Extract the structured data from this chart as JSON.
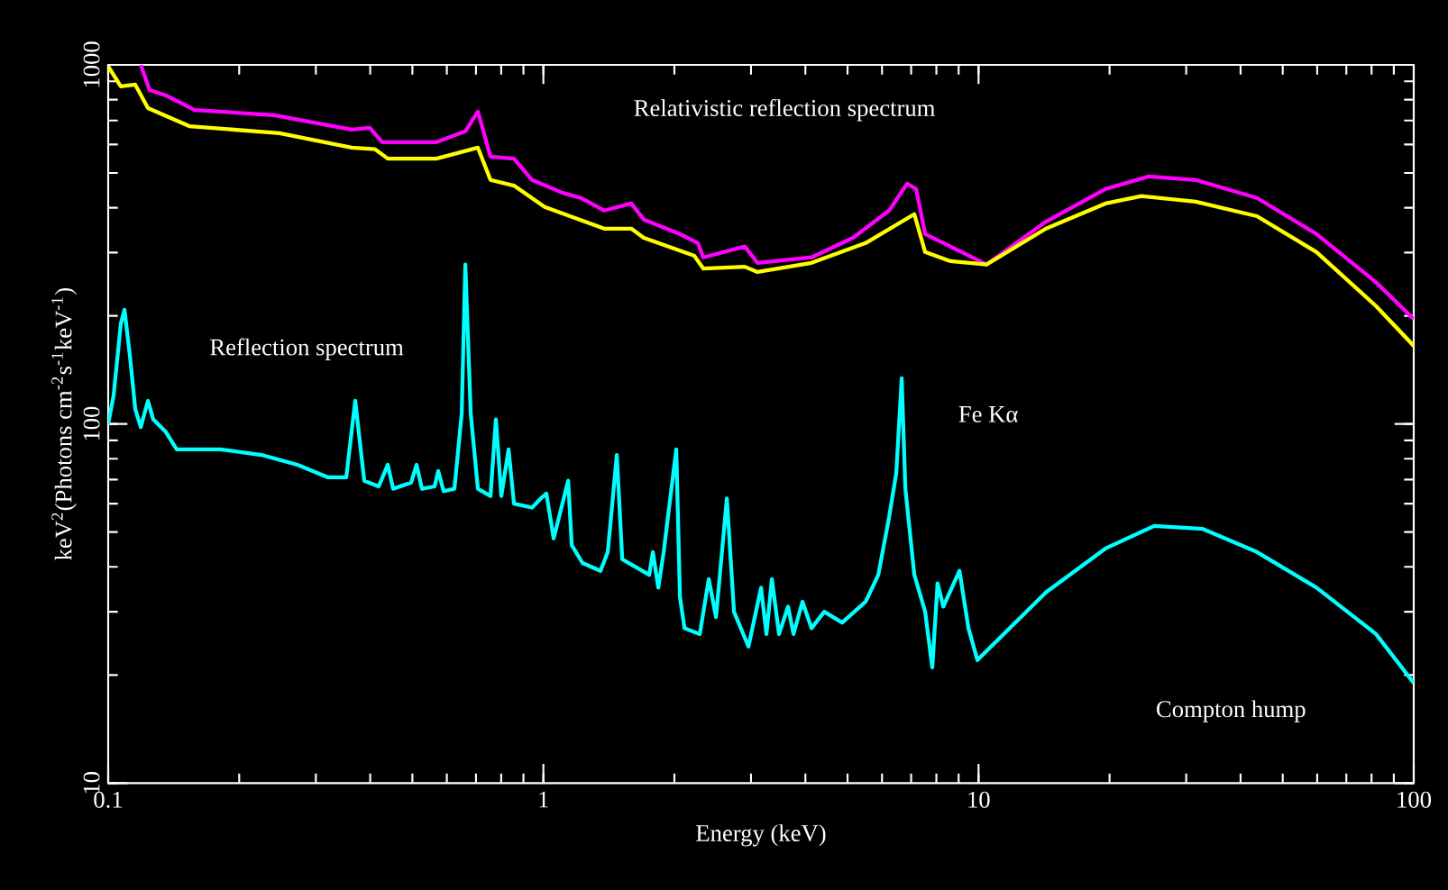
{
  "chart_data": {
    "type": "line",
    "xlabel": "Energy (keV)",
    "ylabel": "keV$^{2}$(Photons cm$^{-2}$s$^{-1}$keV$^{-1}$)",
    "log": "xy",
    "xlim": [
      0.1,
      100
    ],
    "ylim": [
      10,
      1000
    ],
    "xticks": [
      0.1,
      1,
      10,
      100
    ],
    "yticks": [
      10,
      100,
      1000
    ],
    "grid": false,
    "annotations": [
      "Relativistic reflection spectrum",
      "Reflection spectrum",
      {
        "text": "Fe Kα",
        "x": 6.66,
        "y": 134
      },
      "Compton hump"
    ],
    "series": [
      {
        "color": "#ff00ff",
        "x": [
          0.1188,
          0.1245,
          0.1357,
          0.158,
          0.2406,
          0.3626,
          0.399,
          0.4266,
          0.5679,
          0.6617,
          0.7073,
          0.756,
          0.856,
          0.942,
          1.108,
          1.219,
          1.379,
          1.592,
          1.701,
          2.06,
          2.265,
          2.33,
          2.903,
          3.104,
          4.132,
          5.146,
          6.23,
          6.855,
          7.19,
          7.54,
          8.62,
          10.43,
          14.29,
          19.57,
          24.61,
          31.55,
          43.63,
          59.8,
          81.9,
          100
        ],
        "values": [
          1000,
          851,
          822,
          749,
          724,
          660,
          668,
          609,
          609,
          653,
          741,
          555,
          548,
          478,
          440,
          426,
          393,
          411,
          371,
          338,
          319,
          291,
          312,
          281,
          291,
          330,
          393,
          467,
          451,
          338,
          312,
          278,
          366,
          451,
          489,
          478,
          426,
          338,
          248,
          196
        ]
      },
      {
        "color": "#ffff00",
        "x": [
          0.1,
          0.1069,
          0.1154,
          0.1234,
          0.1536,
          0.2476,
          0.3626,
          0.4106,
          0.439,
          0.5679,
          0.7073,
          0.756,
          0.856,
          1.007,
          1.379,
          1.592,
          1.701,
          2.223,
          2.33,
          2.903,
          3.104,
          4.132,
          5.503,
          7.12,
          7.54,
          8.62,
          10.43,
          14.29,
          19.57,
          23.7,
          31.55,
          43.63,
          59.8,
          81.9,
          100
        ],
        "values": [
          990,
          871,
          881,
          758,
          675,
          645,
          588,
          582,
          548,
          548,
          588,
          478,
          461,
          402,
          350,
          350,
          330,
          294,
          271,
          274,
          265,
          281,
          319,
          384,
          301,
          284,
          278,
          350,
          411,
          431,
          416,
          379,
          301,
          213,
          165
        ]
      },
      {
        "color": "#00ffff",
        "x": [
          0.1,
          0.1029,
          0.1069,
          0.109,
          0.1121,
          0.1154,
          0.1188,
          0.1234,
          0.1269,
          0.1357,
          0.1437,
          0.1806,
          0.2251,
          0.2723,
          0.3203,
          0.3524,
          0.3696,
          0.3877,
          0.4184,
          0.439,
          0.4516,
          0.4968,
          0.5112,
          0.526,
          0.5625,
          0.5733,
          0.59,
          0.6247,
          0.6492,
          0.6617,
          0.6808,
          0.7073,
          0.756,
          0.778,
          0.8005,
          0.8318,
          0.856,
          0.942,
          0.986,
          1.016,
          1.056,
          1.14,
          1.162,
          1.23,
          1.353,
          1.406,
          1.475,
          1.518,
          1.751,
          1.785,
          1.837,
          1.89,
          2.02,
          2.06,
          2.11,
          2.288,
          2.399,
          2.493,
          2.64,
          2.742,
          2.96,
          3.164,
          3.256,
          3.35,
          3.48,
          3.65,
          3.757,
          3.94,
          4.132,
          4.42,
          4.86,
          5.503,
          5.884,
          6.23,
          6.47,
          6.66,
          6.79,
          7.12,
          7.54,
          7.83,
          8.05,
          8.3,
          9.04,
          9.48,
          9.94,
          14.29,
          19.57,
          25.33,
          32.78,
          43.63,
          59.8,
          81.9,
          100
        ],
        "values": [
          100,
          120,
          190,
          208,
          156,
          110,
          98,
          116,
          103,
          95,
          85,
          85,
          82,
          77,
          71,
          71,
          116,
          69.5,
          67,
          77,
          66,
          68.7,
          77,
          66,
          67,
          74,
          65,
          66,
          107,
          278,
          107,
          66,
          63,
          103,
          63,
          85,
          60,
          58.5,
          62,
          64,
          48,
          69.5,
          46,
          41,
          39,
          44,
          82,
          42,
          38,
          44,
          35,
          44,
          85,
          33,
          27,
          26,
          37,
          29,
          62,
          30,
          24,
          35,
          26,
          37,
          26,
          31,
          26,
          32,
          27,
          30,
          28,
          32,
          38,
          55,
          73,
          134,
          66,
          38,
          30,
          21,
          36,
          31,
          39,
          27,
          22,
          34,
          45,
          52,
          51,
          44,
          35,
          26,
          19
        ]
      }
    ]
  }
}
